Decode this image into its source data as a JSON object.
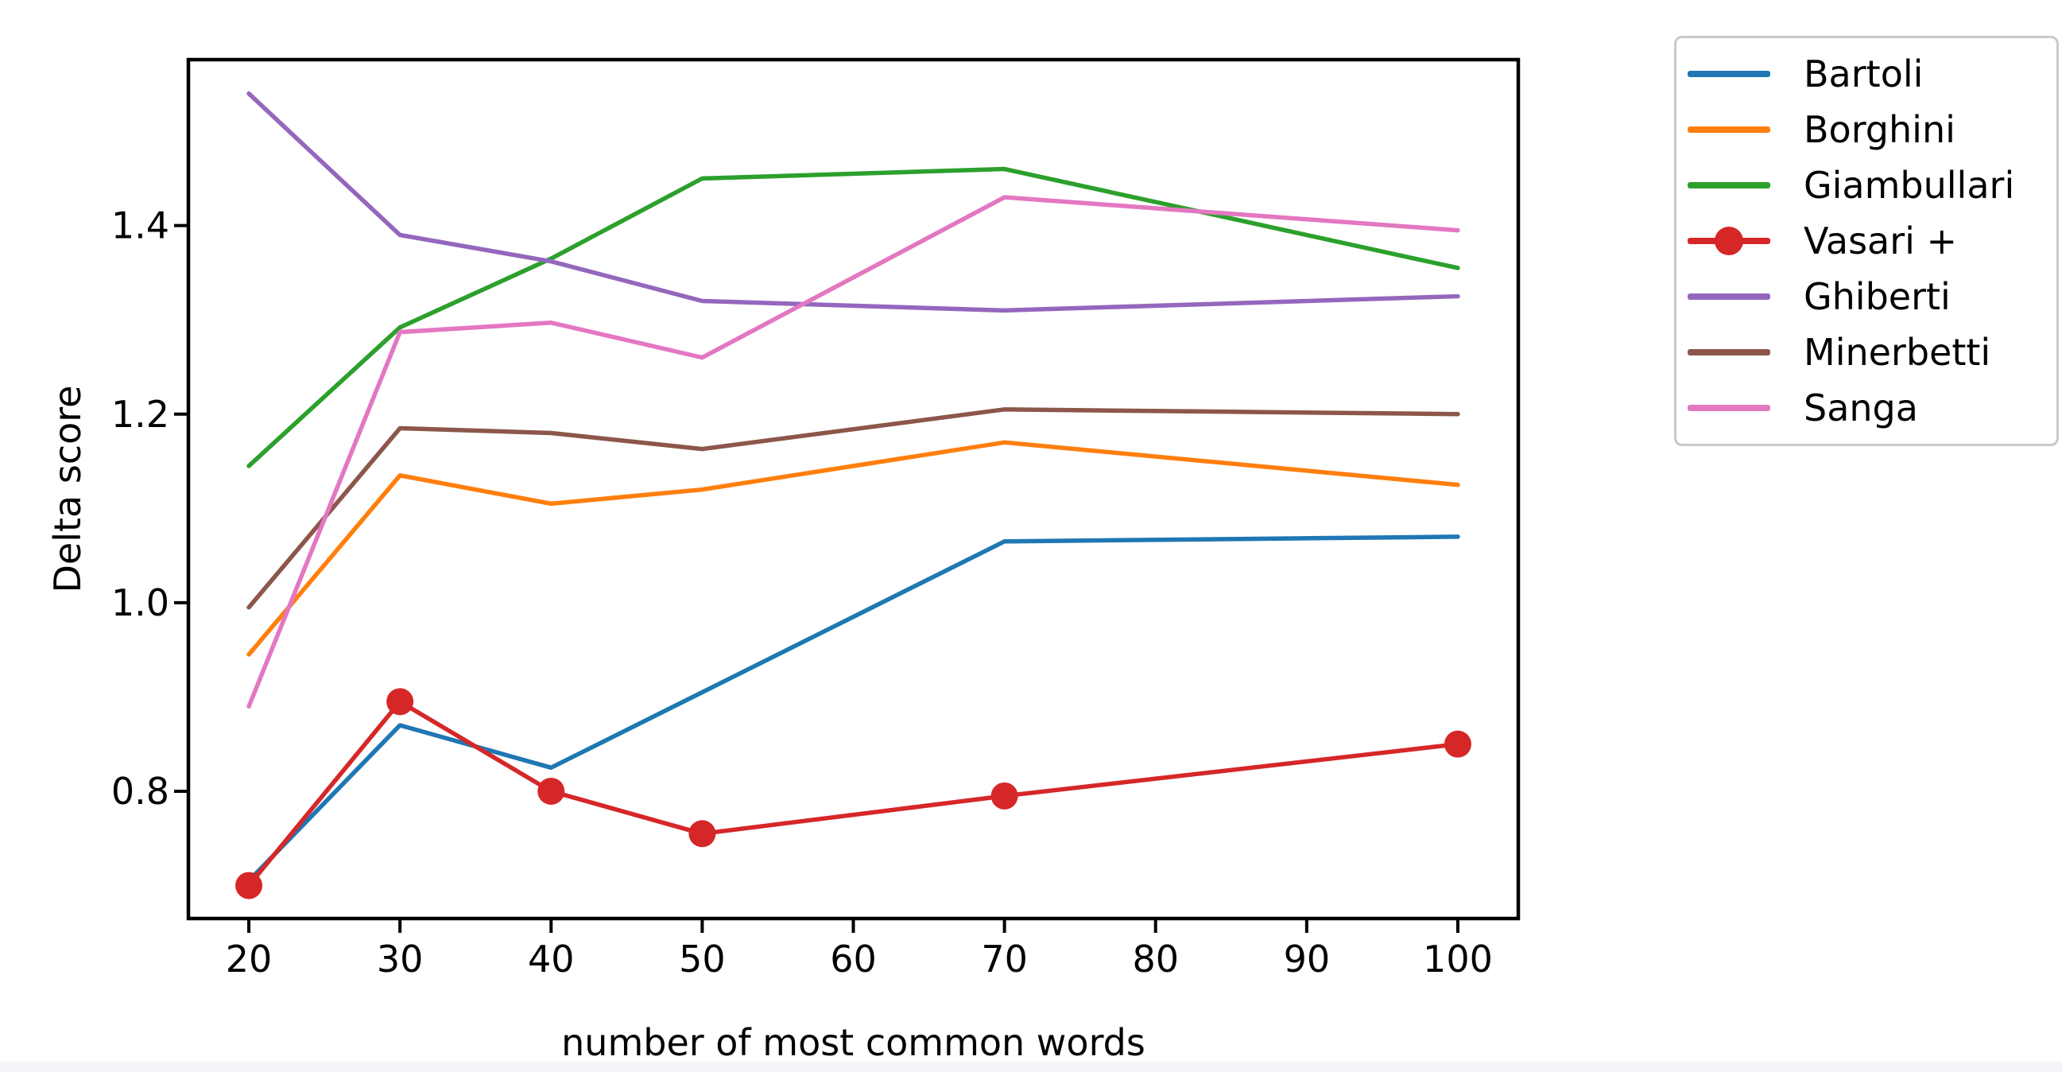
{
  "figure": {
    "background": "#ffffff",
    "footer_strip_color": "#f3f5f8",
    "axis_color": "#000000",
    "legend_border_color": "#c9c9c9"
  },
  "chart_data": {
    "type": "line",
    "title": "",
    "xlabel": "number of most common words",
    "ylabel": "Delta score",
    "x": [
      20,
      30,
      40,
      50,
      70,
      100
    ],
    "x_ticks": [
      "20",
      "30",
      "40",
      "50",
      "60",
      "70",
      "80",
      "90",
      "100"
    ],
    "x_tick_values": [
      20,
      30,
      40,
      50,
      60,
      70,
      80,
      90,
      100
    ],
    "y_ticks": [
      "0.8",
      "1.0",
      "1.2",
      "1.4"
    ],
    "y_tick_values": [
      0.8,
      1.0,
      1.2,
      1.4
    ],
    "xlim": [
      16,
      104
    ],
    "ylim": [
      0.665,
      1.576
    ],
    "grid": false,
    "legend_position": "outside-right-top",
    "series": [
      {
        "name": "Bartoli",
        "color": "#1f77b4",
        "marker": "none",
        "values": [
          0.705,
          0.87,
          0.825,
          0.905,
          1.065,
          1.07
        ]
      },
      {
        "name": "Borghini",
        "color": "#ff7f0e",
        "marker": "none",
        "values": [
          0.945,
          1.135,
          1.105,
          1.12,
          1.17,
          1.125
        ]
      },
      {
        "name": "Giambullari",
        "color": "#2ca02c",
        "marker": "none",
        "values": [
          1.145,
          1.292,
          1.365,
          1.45,
          1.46,
          1.355
        ]
      },
      {
        "name": "Vasari +",
        "color": "#d62728",
        "marker": "circle",
        "values": [
          0.7,
          0.895,
          0.8,
          0.755,
          0.795,
          0.85
        ]
      },
      {
        "name": "Ghiberti",
        "color": "#9467bd",
        "marker": "none",
        "values": [
          1.54,
          1.39,
          1.362,
          1.32,
          1.31,
          1.325
        ]
      },
      {
        "name": "Minerbetti",
        "color": "#8c564b",
        "marker": "none",
        "values": [
          0.995,
          1.185,
          1.18,
          1.163,
          1.205,
          1.2
        ]
      },
      {
        "name": "Sanga",
        "color": "#e377c2",
        "marker": "none",
        "values": [
          0.89,
          1.287,
          1.297,
          1.26,
          1.43,
          1.395
        ]
      }
    ]
  }
}
